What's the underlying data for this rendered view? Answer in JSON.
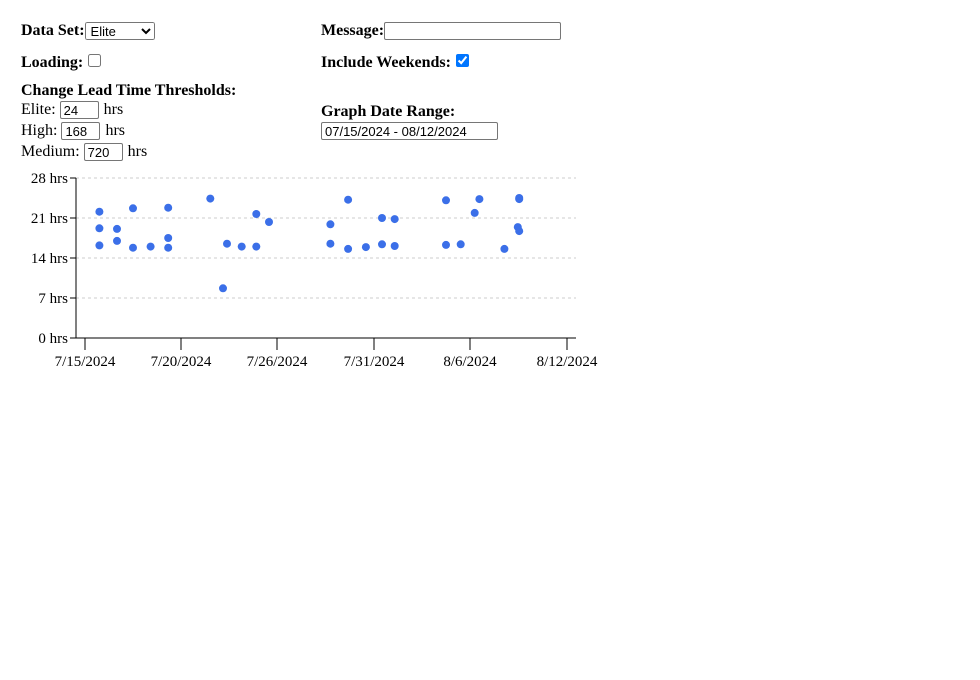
{
  "controls": {
    "data_set_label": "Data Set:",
    "data_set_value": "Elite",
    "message_label": "Message:",
    "message_value": "",
    "loading_label": "Loading:",
    "loading_checked": false,
    "include_weekends_label": "Include Weekends:",
    "include_weekends_checked": true,
    "thresholds_heading": "Change Lead Time Thresholds:",
    "thresholds": [
      {
        "label": "Elite:",
        "value": "24",
        "unit": "hrs"
      },
      {
        "label": "High:",
        "value": "168",
        "unit": "hrs"
      },
      {
        "label": "Medium:",
        "value": "720",
        "unit": "hrs"
      }
    ],
    "graph_range_label": "Graph Date Range:",
    "graph_range_value": "07/15/2024 - 08/12/2024"
  },
  "chart_data": {
    "type": "scatter",
    "color": "#3b6fe8",
    "xlim": [
      "2024-07-15",
      "2024-08-12"
    ],
    "ylim": [
      0,
      28
    ],
    "x_ticks": [
      "7/15/2024",
      "7/20/2024",
      "7/26/2024",
      "7/31/2024",
      "8/6/2024",
      "8/12/2024"
    ],
    "y_ticks": [
      "0 hrs",
      "7 hrs",
      "14 hrs",
      "21 hrs",
      "28 hrs"
    ],
    "grid": "horizontal dashed",
    "points": [
      {
        "x": "2024-07-15T18:00",
        "y": 16.2
      },
      {
        "x": "2024-07-15T18:00",
        "y": 19.2
      },
      {
        "x": "2024-07-15T18:00",
        "y": 22.1
      },
      {
        "x": "2024-07-16T16:00",
        "y": 17.0
      },
      {
        "x": "2024-07-16T16:00",
        "y": 19.1
      },
      {
        "x": "2024-07-17T12:00",
        "y": 15.8
      },
      {
        "x": "2024-07-17T12:00",
        "y": 22.7
      },
      {
        "x": "2024-07-18T10:00",
        "y": 16.0
      },
      {
        "x": "2024-07-19T08:00",
        "y": 15.8
      },
      {
        "x": "2024-07-19T08:00",
        "y": 17.5
      },
      {
        "x": "2024-07-19T08:00",
        "y": 22.8
      },
      {
        "x": "2024-07-21T20:00",
        "y": 24.4
      },
      {
        "x": "2024-07-22T15:00",
        "y": 8.7
      },
      {
        "x": "2024-07-22T21:00",
        "y": 16.5
      },
      {
        "x": "2024-07-23T19:00",
        "y": 16.0
      },
      {
        "x": "2024-07-24T17:00",
        "y": 16.0
      },
      {
        "x": "2024-07-24T17:00",
        "y": 21.7
      },
      {
        "x": "2024-07-25T12:00",
        "y": 20.3
      },
      {
        "x": "2024-07-28T18:00",
        "y": 16.5
      },
      {
        "x": "2024-07-28T18:00",
        "y": 19.9
      },
      {
        "x": "2024-07-29T16:00",
        "y": 15.6
      },
      {
        "x": "2024-07-29T16:00",
        "y": 24.2
      },
      {
        "x": "2024-07-30T14:00",
        "y": 15.9
      },
      {
        "x": "2024-07-31T12:00",
        "y": 16.4
      },
      {
        "x": "2024-07-31T12:00",
        "y": 21.0
      },
      {
        "x": "2024-08-01T07:00",
        "y": 16.1
      },
      {
        "x": "2024-08-01T07:00",
        "y": 20.8
      },
      {
        "x": "2024-08-04T12:00",
        "y": 16.3
      },
      {
        "x": "2024-08-04T12:00",
        "y": 24.1
      },
      {
        "x": "2024-08-05T10:00",
        "y": 16.4
      },
      {
        "x": "2024-08-06T07:00",
        "y": 21.9
      },
      {
        "x": "2024-08-06T14:00",
        "y": 24.3
      },
      {
        "x": "2024-08-08T03:00",
        "y": 15.6
      },
      {
        "x": "2024-08-08T23:00",
        "y": 19.4
      },
      {
        "x": "2024-08-09T01:00",
        "y": 18.7
      },
      {
        "x": "2024-08-09T01:00",
        "y": 24.3
      },
      {
        "x": "2024-08-09T01:00",
        "y": 24.5
      }
    ]
  }
}
